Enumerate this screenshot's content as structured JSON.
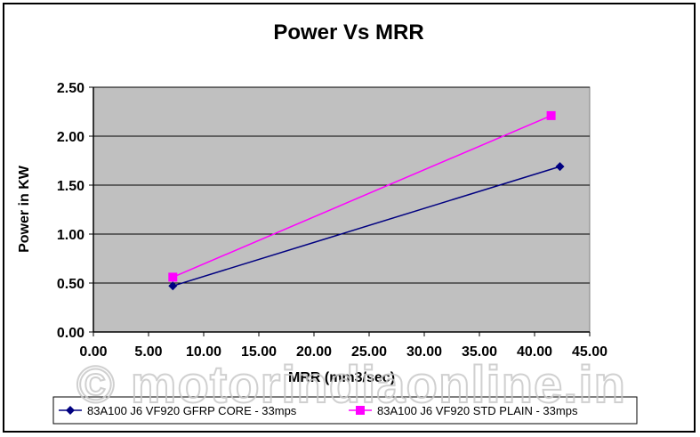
{
  "chart_data": {
    "type": "line",
    "title": "Power Vs MRR",
    "xlabel": "MRR (mm3/sec)",
    "ylabel": "Power in KW",
    "xlim": [
      0,
      45
    ],
    "ylim": [
      0,
      2.5
    ],
    "x_ticks": [
      "0.00",
      "5.00",
      "10.00",
      "15.00",
      "20.00",
      "25.00",
      "30.00",
      "35.00",
      "40.00",
      "45.00"
    ],
    "y_ticks": [
      "0.00",
      "0.50",
      "1.00",
      "1.50",
      "2.00",
      "2.50"
    ],
    "grid": "horizontal",
    "legend_position": "bottom",
    "series": [
      {
        "name": "83A100 J6 VF920 GFRP CORE - 33mps",
        "color": "#000080",
        "marker": "diamond",
        "points": [
          {
            "x": 7.2,
            "y": 0.47
          },
          {
            "x": 42.3,
            "y": 1.69
          }
        ]
      },
      {
        "name": "83A100 J6 VF920 STD PLAIN - 33mps",
        "color": "#ff00ff",
        "marker": "square",
        "points": [
          {
            "x": 7.2,
            "y": 0.56
          },
          {
            "x": 41.5,
            "y": 2.21
          }
        ]
      }
    ]
  },
  "watermark": "© motorindiaonline.in",
  "colors": {
    "plot_bg": "#c0c0c0",
    "grid": "#000000"
  }
}
